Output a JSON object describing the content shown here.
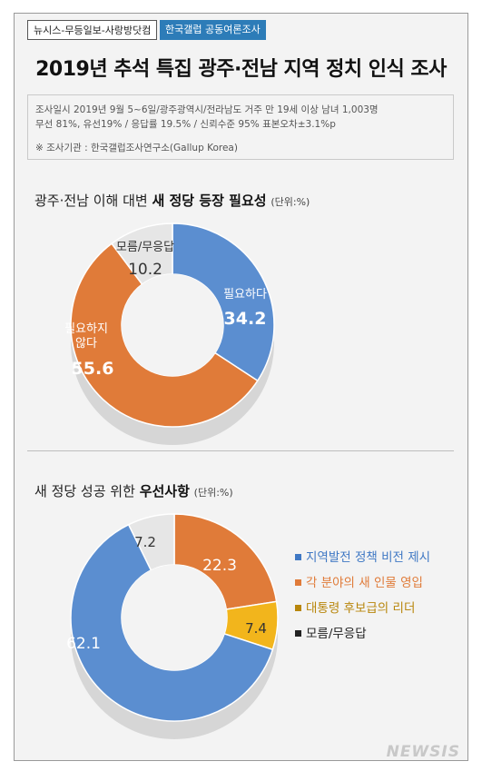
{
  "header": {
    "source_tag": "뉴시스-무등일보-사랑방닷컴",
    "partner_tag": "한국갤럽 공동여론조사",
    "title": "2019년 추석 특집 광주·전남 지역 정치 인식 조사"
  },
  "survey_info": {
    "line1": "조사일시 2019년 9월 5~6일/광주광역시/전라남도 거주 만 19세 이상 남녀 1,003명",
    "line2": "무선 81%, 유선19% / 응답률 19.5% / 신뢰수준 95% 표본오차±3.1%p",
    "line3": "※ 조사기관 : 한국갤럽조사연구소(Gallup Korea)"
  },
  "watermark": "NEWSIS",
  "chart_data": [
    {
      "type": "pie",
      "title_pre": "광주·전남 이해 대변 ",
      "title_bold": "새 정당 등장 필요성",
      "unit": "(단위:%)",
      "slices": [
        {
          "label": "필요하다",
          "value": 34.2,
          "color": "#5b8ed0"
        },
        {
          "label": "필요하지 않다",
          "value": 55.6,
          "color": "#e07b39"
        },
        {
          "label": "모름/무응답",
          "value": 10.2,
          "color": "#e6e6e6"
        }
      ]
    },
    {
      "type": "pie",
      "title_pre": "새 정당 성공 위한 ",
      "title_bold": "우선사항",
      "unit": "(단위:%)",
      "legend_position": "right",
      "slices": [
        {
          "label": "각 분야의 새 인물 영입",
          "value": 22.3,
          "color": "#e07b39"
        },
        {
          "label": "대통령 후보급의 리더",
          "value": 7.4,
          "color": "#f2b51c"
        },
        {
          "label": "지역발전 정책 비전 제시",
          "value": 62.1,
          "color": "#5b8ed0"
        },
        {
          "label": "모름/무응답",
          "value": 7.2,
          "color": "#e6e6e6"
        }
      ],
      "legend": [
        {
          "label": "지역발전 정책 비전 제시",
          "color": "#3f78c4"
        },
        {
          "label": "각 분야의 새 인물 영입",
          "color": "#e07b39"
        },
        {
          "label": "대통령 후보급의 리더",
          "color": "#b8860b"
        },
        {
          "label": "모름/무응답",
          "color": "#222222"
        }
      ]
    }
  ]
}
